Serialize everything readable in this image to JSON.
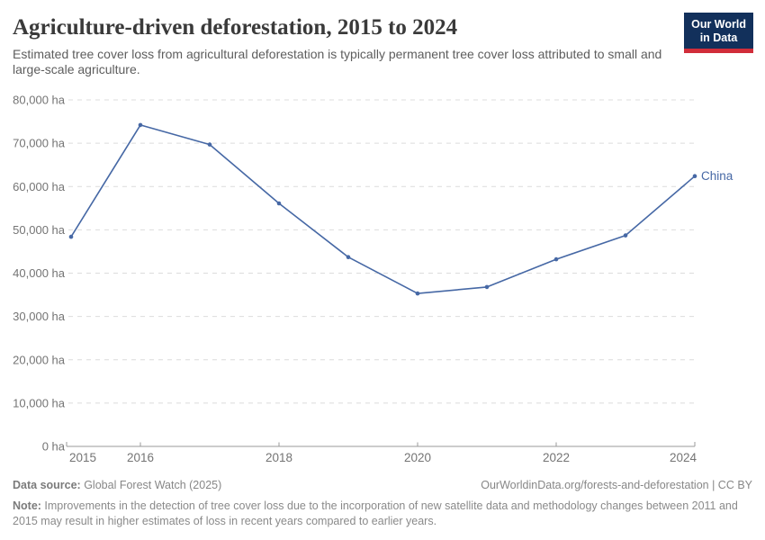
{
  "header": {
    "title": "Agriculture-driven deforestation, 2015 to 2024",
    "subtitle": "Estimated tree cover loss from agricultural deforestation is typically permanent tree cover loss attributed to small and large-scale agriculture."
  },
  "logo": {
    "line1": "Our World",
    "line2": "in Data"
  },
  "chart_data": {
    "type": "line",
    "title": "Agriculture-driven deforestation, 2015 to 2024",
    "x": [
      2015,
      2016,
      2017,
      2018,
      2019,
      2020,
      2021,
      2022,
      2023,
      2024
    ],
    "series": [
      {
        "name": "China",
        "values": [
          48400,
          74200,
          69700,
          56100,
          43700,
          35300,
          36800,
          43200,
          48700,
          62400
        ]
      }
    ],
    "unit": "ha",
    "ylim": [
      0,
      80000
    ],
    "y_ticks": [
      {
        "value": 0,
        "label": "0 ha"
      },
      {
        "value": 10000,
        "label": "10,000 ha"
      },
      {
        "value": 20000,
        "label": "20,000 ha"
      },
      {
        "value": 30000,
        "label": "30,000 ha"
      },
      {
        "value": 40000,
        "label": "40,000 ha"
      },
      {
        "value": 50000,
        "label": "50,000 ha"
      },
      {
        "value": 60000,
        "label": "60,000 ha"
      },
      {
        "value": 70000,
        "label": "70,000 ha"
      },
      {
        "value": 80000,
        "label": "80,000 ha"
      }
    ],
    "x_ticks": [
      2015,
      2016,
      2018,
      2020,
      2022,
      2024
    ],
    "grid": "horizontal-dashed",
    "legend_position": "end-of-line-label"
  },
  "colors": {
    "line": "#4668a5",
    "grid": "#dcdcdc",
    "axis": "#9a9a9a",
    "tick_label": "#747474",
    "logo_bg": "#12305b",
    "logo_stripe": "#d12d3a"
  },
  "footer": {
    "datasource_label": "Data source:",
    "datasource_value": " Global Forest Watch (2025)",
    "link": "OurWorldinData.org/forests-and-deforestation | CC BY",
    "note_label": "Note:",
    "note_text": " Improvements in the detection of tree cover loss due to the incorporation of new satellite data and methodology changes between 2011 and 2015 may result in higher estimates of loss in recent years compared to earlier years."
  }
}
